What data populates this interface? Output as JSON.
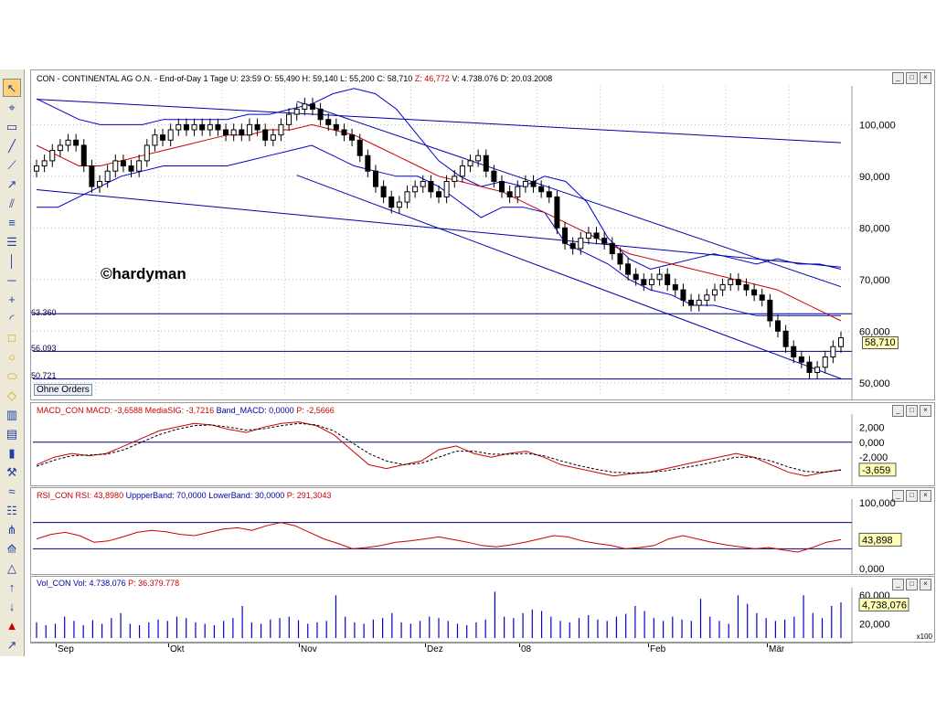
{
  "toolbar": {
    "icons": [
      "cursor-icon",
      "crosshair-icon",
      "rectangle-icon",
      "line-icon",
      "trendline-icon",
      "ray-icon",
      "channel-icon",
      "parallel-icon",
      "fibonacci-icon",
      "vertical-line-icon",
      "horizontal-line-icon",
      "cross-icon",
      "arc-icon",
      "square-icon",
      "circle-icon",
      "ellipse-icon",
      "diamond-icon",
      "bars-icon",
      "bars2-icon",
      "candles-icon",
      "tools-icon",
      "wave-icon",
      "list-icon",
      "pitchfork-icon",
      "fan-icon",
      "triangle-icon",
      "arrow-up-icon",
      "arrow-down-icon",
      "alert-icon",
      "arrow-upright-icon"
    ]
  },
  "window": {
    "buttons": [
      "_",
      "□",
      "×"
    ]
  },
  "price_header": {
    "name": "CON - CONTINENTAL AG O.N. - End-of-Day 1 Tage",
    "u_label": "U:",
    "u_val": "23:59",
    "o_label": "O:",
    "o_val": "55,490",
    "h_label": "H:",
    "h_val": "59,140",
    "l_label": "L:",
    "l_val": "55,200",
    "c_label": "C:",
    "c_val": "58,710",
    "z_label": "Z:",
    "z_val": "46,772",
    "v_label": "V:",
    "v_val": "4.738.076",
    "d_label": "D:",
    "d_val": "20.03.2008"
  },
  "macd_header": {
    "name": "MACD_CON",
    "t1": "MACD: -3,6588",
    "t2": "MediaSIG: -3,7216",
    "t3": "Band_MACD: 0,0000",
    "t4": "P: -2,5666"
  },
  "rsi_header": {
    "name": "RSI_CON",
    "t1": "RSI: 43,8980",
    "t2": "UppperBand: 70,0000",
    "t3": "LowerBand: 30,0000",
    "t4": "P: 291,3043"
  },
  "vol_header": {
    "name": "Vol_CON",
    "t1": "Vol: 4.738.076",
    "t2": "P: 36.379.778"
  },
  "watermark": "©hardyman",
  "orders_label": "Ohne Orders",
  "levels": {
    "l1": "63.360",
    "l2": "56.093",
    "l3": "50.721"
  },
  "vol_unit": "x100",
  "colors": {
    "candle": "#000000",
    "bb": "#0000cc",
    "ma": "#cc0000",
    "trend": "#0000aa",
    "macd": "#cc0000",
    "signal": "#000000",
    "rsi": "#cc0000",
    "band": "#000080",
    "vol": "#0000cc"
  },
  "chart_data": [
    {
      "type": "candlestick",
      "title": "CON - CONTINENTAL AG O.N.",
      "x_months": [
        "Sep",
        "Okt",
        "Nov",
        "Dez",
        "08",
        "Feb",
        "Mär"
      ],
      "y_ticks": [
        "100,000",
        "90,000",
        "80,000",
        "70,000",
        "60,000",
        "50,000"
      ],
      "ylim": [
        47.3,
        107.5
      ],
      "last_close": "58,710",
      "close_approx": [
        92,
        93,
        95,
        96,
        97,
        96,
        92,
        88,
        89,
        91,
        93,
        92,
        91,
        93,
        96,
        98,
        97,
        99,
        100,
        99,
        100,
        99,
        100,
        99,
        98,
        99,
        98,
        100,
        99,
        97,
        98,
        100,
        102,
        103,
        104,
        103,
        101,
        100,
        99,
        98,
        97,
        94,
        91,
        88,
        86,
        84,
        85,
        87,
        88,
        89,
        87,
        86,
        89,
        90,
        92,
        93,
        94,
        91,
        89,
        87,
        86,
        88,
        89,
        88,
        87,
        86,
        80,
        77,
        76,
        78,
        79,
        78,
        77,
        75,
        73,
        71,
        70,
        69,
        70,
        71,
        69,
        68,
        66,
        65,
        66,
        67,
        68,
        69,
        70,
        69,
        68,
        67,
        66,
        62,
        60,
        57,
        55,
        54,
        52,
        53,
        55,
        57,
        58.71
      ],
      "upper_band_approx": [
        105,
        103,
        101,
        100,
        100,
        100,
        101,
        101,
        101,
        101,
        102,
        102,
        103,
        104,
        106,
        107,
        106,
        103,
        98,
        93,
        90,
        88,
        89,
        88,
        90,
        89,
        85,
        78,
        74,
        72,
        73,
        74,
        75,
        74,
        73,
        74,
        73,
        73,
        72
      ],
      "lower_band_approx": [
        84,
        84,
        86,
        88,
        90,
        91,
        92,
        92,
        92,
        92,
        93,
        94,
        95,
        96,
        94,
        92,
        91,
        90,
        90,
        88,
        85,
        82,
        84,
        84,
        83,
        77,
        75,
        73,
        70,
        68,
        67,
        65,
        65,
        64,
        63,
        63,
        63,
        63,
        63
      ],
      "ma_approx": [
        96,
        94,
        92,
        92,
        93,
        94,
        95,
        96,
        97,
        98,
        98,
        99,
        99,
        100,
        99,
        98,
        96,
        94,
        92,
        90,
        89,
        88,
        87,
        85,
        83,
        81,
        79,
        77,
        75,
        74,
        73,
        72,
        71,
        70,
        69,
        68,
        66,
        64,
        62
      ],
      "levels": [
        63.36,
        56.093,
        50.721
      ]
    },
    {
      "type": "line",
      "title": "MACD_CON",
      "y_ticks": [
        "2,000",
        "0,000",
        "-2,000",
        "-3,659"
      ],
      "ylim": [
        -5.5,
        3.5
      ],
      "series": [
        {
          "name": "MACD",
          "values": [
            -3,
            -2,
            -1.5,
            -1.8,
            -1.5,
            -0.5,
            0.5,
            1.5,
            2,
            2.5,
            2.3,
            1.7,
            1.3,
            2,
            2.5,
            2.7,
            2.2,
            1,
            -1,
            -3,
            -3.5,
            -3,
            -2.5,
            -1,
            -0.5,
            -1.5,
            -2,
            -1.5,
            -1.2,
            -2,
            -3,
            -3.5,
            -4,
            -4.5,
            -4.2,
            -4,
            -3.5,
            -3,
            -2.5,
            -2,
            -1.5,
            -2,
            -3,
            -4,
            -4.5,
            -4,
            -3.66
          ]
        },
        {
          "name": "MediaSIG",
          "values": [
            -3.2,
            -2.4,
            -1.8,
            -1.7,
            -1.6,
            -1,
            0,
            1,
            1.7,
            2.2,
            2.3,
            2,
            1.6,
            1.8,
            2.2,
            2.5,
            2.3,
            1.5,
            0,
            -1.5,
            -2.5,
            -3,
            -2.8,
            -2,
            -1.2,
            -1.2,
            -1.6,
            -1.6,
            -1.5,
            -1.8,
            -2.5,
            -3.1,
            -3.6,
            -4,
            -4.1,
            -4,
            -3.8,
            -3.4,
            -3,
            -2.5,
            -2,
            -2,
            -2.5,
            -3.3,
            -3.9,
            -4,
            -3.72
          ]
        }
      ]
    },
    {
      "type": "line",
      "title": "RSI_CON",
      "y_ticks": [
        "100,000",
        "43,898",
        "0,000"
      ],
      "ylim": [
        0,
        100
      ],
      "bands": [
        30,
        70
      ],
      "series": [
        {
          "name": "RSI",
          "values": [
            45,
            52,
            55,
            50,
            40,
            42,
            48,
            55,
            58,
            56,
            52,
            50,
            55,
            60,
            62,
            58,
            65,
            70,
            65,
            55,
            45,
            38,
            30,
            32,
            35,
            40,
            42,
            45,
            48,
            44,
            40,
            35,
            33,
            36,
            40,
            45,
            50,
            48,
            42,
            38,
            35,
            30,
            32,
            35,
            45,
            50,
            45,
            40,
            36,
            33,
            30,
            32,
            28,
            25,
            32,
            40,
            43.9
          ]
        }
      ]
    },
    {
      "type": "bar",
      "title": "Vol_CON",
      "y_ticks": [
        "60,000",
        "4,738,076",
        "20,000"
      ],
      "unit": "x100",
      "series": [
        {
          "name": "Vol",
          "values": [
            22,
            18,
            20,
            30,
            24,
            18,
            25,
            20,
            28,
            35,
            20,
            18,
            22,
            26,
            24,
            30,
            28,
            22,
            20,
            18,
            24,
            28,
            45,
            22,
            20,
            26,
            28,
            30,
            25,
            20,
            22,
            24,
            60,
            30,
            22,
            20,
            26,
            28,
            35,
            22,
            20,
            24,
            30,
            28,
            24,
            20,
            18,
            22,
            26,
            65,
            30,
            28,
            35,
            40,
            38,
            30,
            24,
            22,
            28,
            32,
            26,
            24,
            30,
            34,
            45,
            38,
            28,
            24,
            30,
            26,
            24,
            55,
            30,
            24,
            20,
            60,
            48,
            35,
            28,
            24,
            26,
            30,
            60,
            35,
            28,
            45,
            50
          ]
        }
      ]
    }
  ]
}
